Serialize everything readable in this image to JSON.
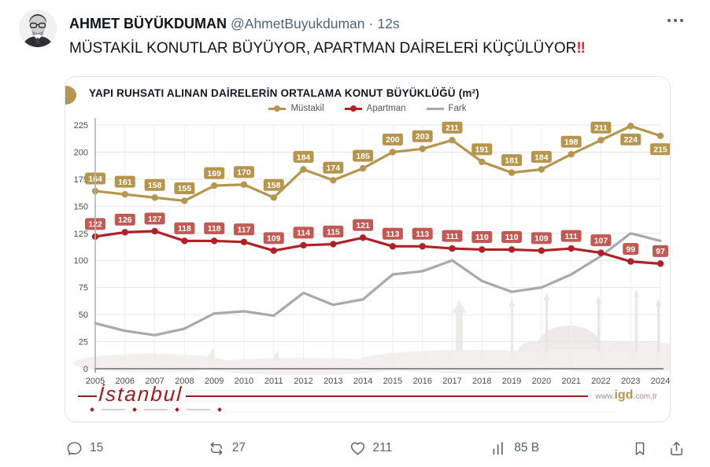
{
  "tweet": {
    "author_name": "AHMET BÜYÜKDUMAN",
    "handle": "@AhmetBuyukduman",
    "separator": "·",
    "timestamp": "12s",
    "text": "MÜSTAKİL KONUTLAR BÜYÜYOR, APARTMAN DAİRELERİ KÜÇÜLÜYOR",
    "emphasis": "‼"
  },
  "icons": {
    "more": "ellipsis",
    "reply": "speech-bubble",
    "repost": "retweet-arrows",
    "like": "heart-outline",
    "views": "bar-chart",
    "bookmark": "bookmark-outline",
    "share": "arrow-up-from-tray"
  },
  "actions": {
    "reply_count": "15",
    "repost_count": "27",
    "like_count": "211",
    "view_count": "85 B"
  },
  "chart": {
    "footer_logo": "İstanbul",
    "url_prefix": "www.",
    "url_main": "igd",
    "url_suffix": ".com.tr"
  },
  "colors": {
    "mustakil_gold": "#b6954e",
    "apartman_red": "#b02125",
    "apartman_label_bg": "#c05a55",
    "fark_gray": "#a9a9a9",
    "logo_red": "#9c1b1f",
    "action_gray": "#536471",
    "emphasis_red": "#e82431"
  },
  "chart_data": {
    "type": "line",
    "title": "YAPI RUHSATI ALINAN DAİRELERİN ORTALAMA KONUT BÜYÜKLÜĞÜ (m²)",
    "categories": [
      "2005",
      "2006",
      "2007",
      "2008",
      "2009",
      "2010",
      "2011",
      "2012",
      "2013",
      "2014",
      "2015",
      "2016",
      "2017",
      "2018",
      "2019",
      "2020",
      "2021",
      "2022",
      "2023",
      "2024"
    ],
    "series": [
      {
        "name": "Müstakil",
        "color": "#b6954e",
        "label_bg": "#b6954e",
        "values": [
          164,
          161,
          158,
          155,
          169,
          170,
          158,
          184,
          174,
          185,
          200,
          203,
          211,
          191,
          181,
          184,
          198,
          211,
          224,
          215
        ],
        "show_labels": true,
        "show_markers": true,
        "label_below_indices": [
          18,
          19
        ]
      },
      {
        "name": "Apartman",
        "color": "#b02125",
        "label_bg": "#c05a55",
        "values": [
          122,
          126,
          127,
          118,
          118,
          117,
          109,
          114,
          115,
          121,
          113,
          113,
          111,
          110,
          110,
          109,
          111,
          107,
          99,
          97
        ],
        "show_labels": true,
        "show_markers": true,
        "label_below_indices": []
      },
      {
        "name": "Fark",
        "color": "#a9a9a9",
        "label_bg": "#a9a9a9",
        "values": [
          42,
          35,
          31,
          37,
          51,
          53,
          49,
          70,
          59,
          64,
          87,
          90,
          100,
          81,
          71,
          75,
          87,
          104,
          125,
          118
        ],
        "show_labels": false,
        "show_markers": false,
        "label_below_indices": []
      }
    ],
    "ylim": [
      0,
      225
    ],
    "yticks": [
      0,
      25,
      50,
      75,
      100,
      125,
      150,
      175,
      200,
      225
    ],
    "grid": true,
    "legend_position": "top"
  }
}
